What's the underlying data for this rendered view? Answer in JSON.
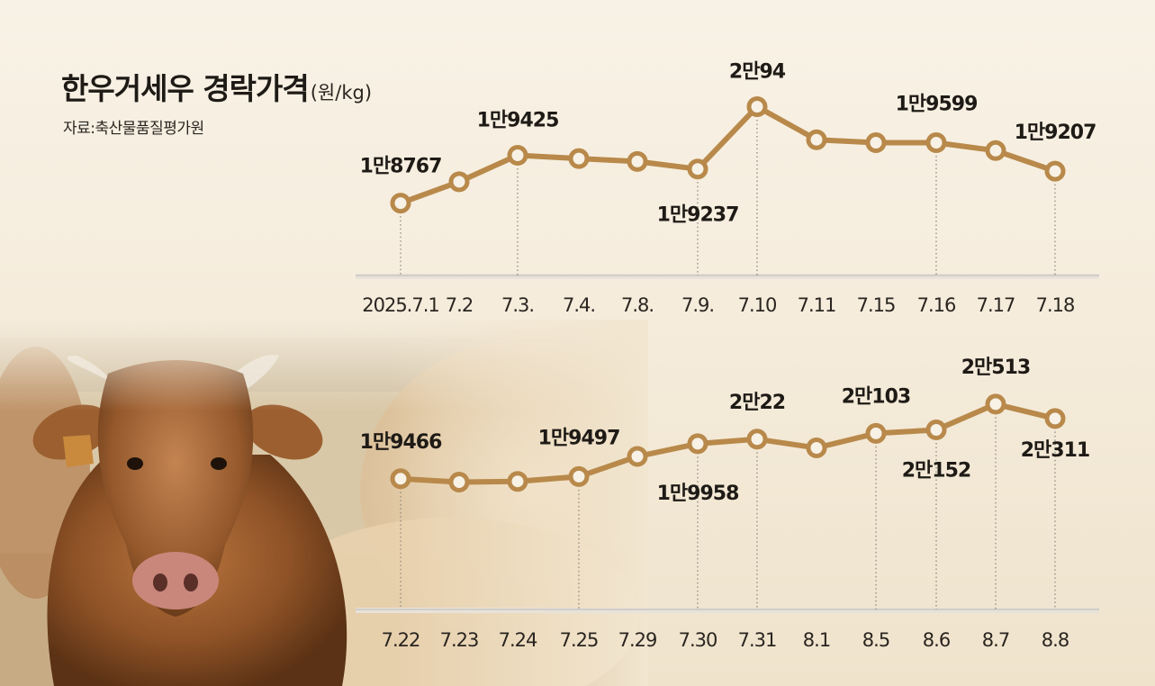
{
  "title": "한우거세우 경락가격",
  "unit": "(원/kg)",
  "source": "자료:축산물품질평가원",
  "colors": {
    "line": "#b8894a",
    "marker_fill": "#f7f1e6",
    "axis": "#d2cdc5",
    "text": "#1e1a16"
  },
  "chart_data": [
    {
      "type": "line",
      "x": [
        "2025.7.1",
        "7.2",
        "7.3.",
        "7.4.",
        "7.8.",
        "7.9.",
        "7.10",
        "7.11",
        "7.15",
        "7.16",
        "7.17",
        "7.18"
      ],
      "values": [
        18767,
        19060,
        19425,
        19380,
        19340,
        19237,
        20094,
        19640,
        19599,
        19599,
        19490,
        19207
      ],
      "data_labels": [
        {
          "index": 0,
          "text": "1만8767"
        },
        {
          "index": 2,
          "text": "1만9425"
        },
        {
          "index": 5,
          "text": "1만9237"
        },
        {
          "index": 6,
          "text": "2만94"
        },
        {
          "index": 9,
          "text": "1만9599"
        },
        {
          "index": 11,
          "text": "1만9207"
        }
      ]
    },
    {
      "type": "line",
      "x": [
        "7.22",
        "7.23",
        "7.24",
        "7.25",
        "7.29",
        "7.30",
        "7.31",
        "8.1",
        "8.5",
        "8.6",
        "8.7",
        "8.8"
      ],
      "values": [
        19466,
        19420,
        19430,
        19497,
        19780,
        19958,
        20022,
        19900,
        20103,
        20152,
        20513,
        20311
      ],
      "data_labels": [
        {
          "index": 0,
          "text": "1만9466"
        },
        {
          "index": 3,
          "text": "1만9497"
        },
        {
          "index": 5,
          "text": "1만9958"
        },
        {
          "index": 6,
          "text": "2만22"
        },
        {
          "index": 8,
          "text": "2만103"
        },
        {
          "index": 9,
          "text": "2만152"
        },
        {
          "index": 10,
          "text": "2만513"
        },
        {
          "index": 11,
          "text": "2만311"
        }
      ]
    }
  ]
}
